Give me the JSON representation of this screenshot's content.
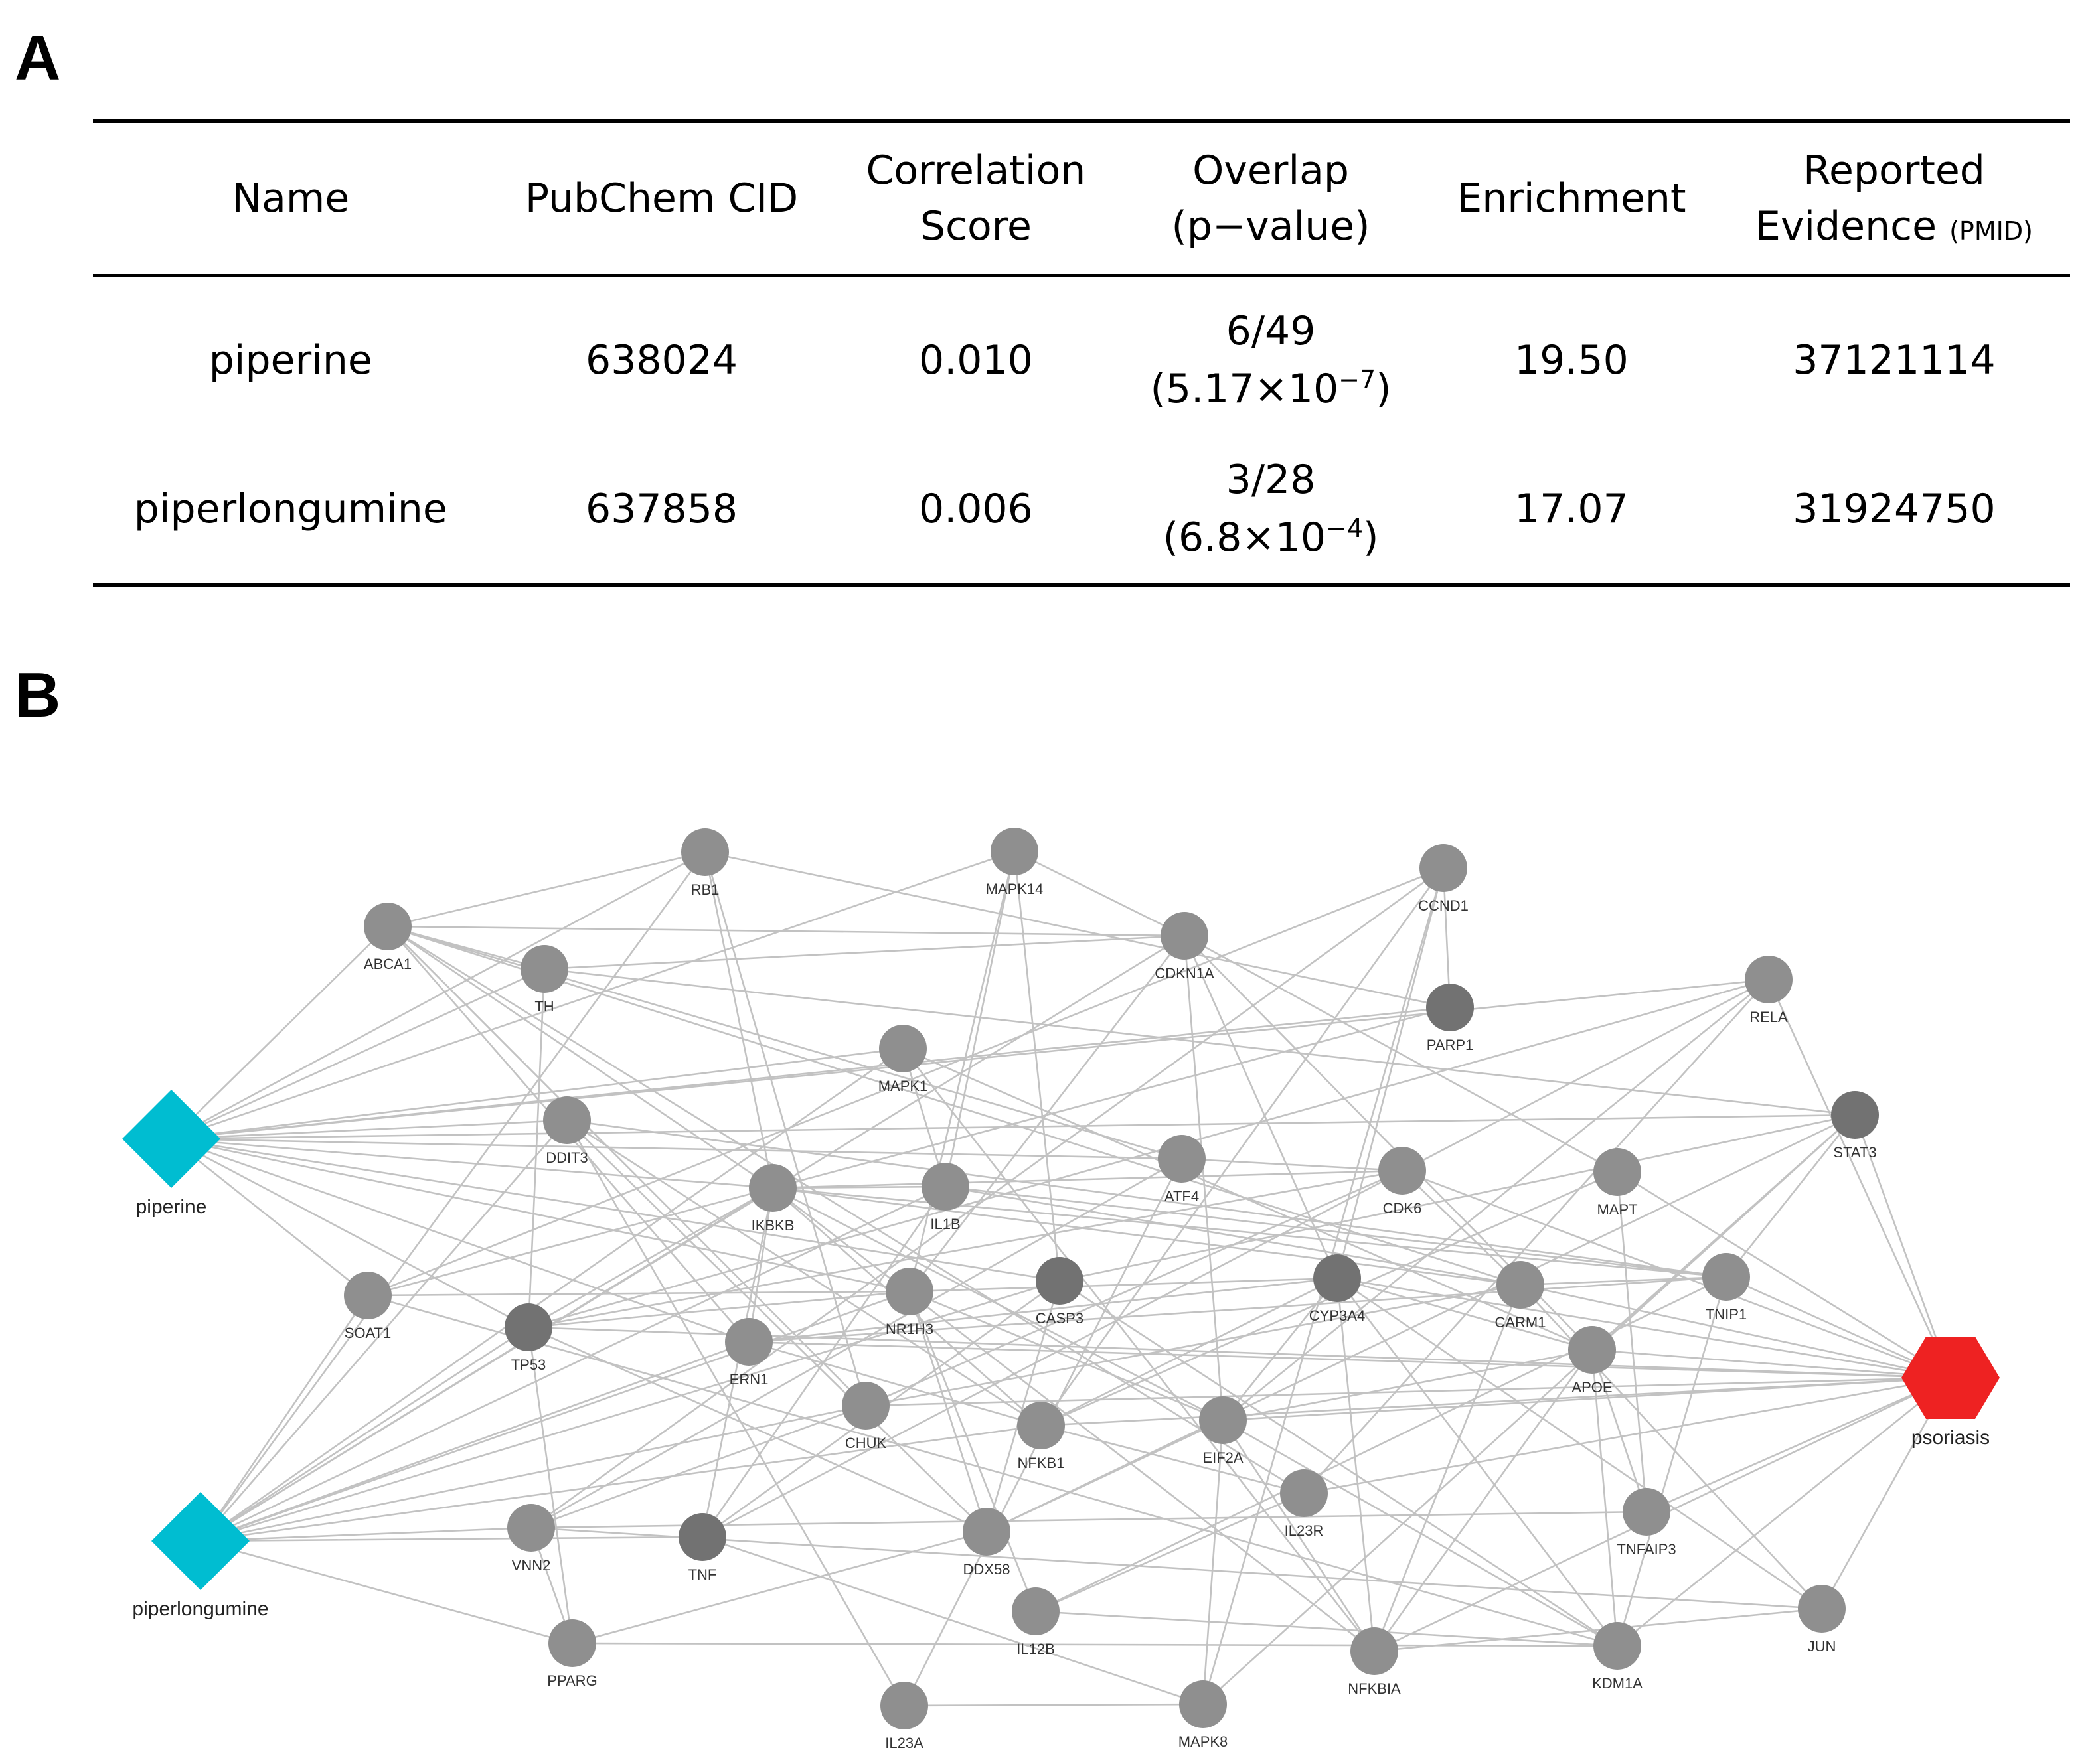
{
  "panels": {
    "a": "A",
    "b": "B"
  },
  "table": {
    "headers": {
      "name": "Name",
      "cid": "PubChem CID",
      "corr_1": "Correlation",
      "corr_2": "Score",
      "overlap_1": "Overlap",
      "overlap_2": "(p−value)",
      "enrichment": "Enrichment",
      "evidence_1": "Reported",
      "evidence_2": "Evidence",
      "evidence_unit": "(PMID)"
    },
    "rows": [
      {
        "name": "piperine",
        "cid": "638024",
        "score": "0.010",
        "overlap": "6/49",
        "p_base": "(5.17×10",
        "p_exp": "−7",
        "p_close": ")",
        "enrichment": "19.50",
        "pmid": "37121114"
      },
      {
        "name": "piperlongumine",
        "cid": "637858",
        "score": "0.006",
        "overlap": "3/28",
        "p_base": "(6.8×10",
        "p_exp": "−4",
        "p_close": ")",
        "enrichment": "17.07",
        "pmid": "31924750"
      }
    ]
  },
  "network": {
    "colors": {
      "drug": "#00bdd1",
      "disease": "#ee2222",
      "node": "#8f8f8f",
      "node_dark": "#727272",
      "edge": "#c2c2c2"
    },
    "drugs": [
      "piperine",
      "piperlongumine"
    ],
    "disease": "psoriasis",
    "genes": [
      "RB1",
      "MAPK14",
      "CCND1",
      "ABCA1",
      "TH",
      "CDKN1A",
      "RELA",
      "PARP1",
      "MAPK1",
      "STAT3",
      "DDIT3",
      "ATF4",
      "CDK6",
      "MAPT",
      "IKBKB",
      "IL1B",
      "SOAT1",
      "TP53",
      "NR1H3",
      "CASP3",
      "CYP3A4",
      "CARM1",
      "TNIP1",
      "ERN1",
      "APOE",
      "CHUK",
      "NFKB1",
      "EIF2A",
      "IL23R",
      "TNFAIP3",
      "VNN2",
      "TNF",
      "DDX58",
      "IL12B",
      "JUN",
      "PPARG",
      "NFKBIA",
      "KDM1A",
      "IL23A",
      "MAPK8"
    ]
  }
}
